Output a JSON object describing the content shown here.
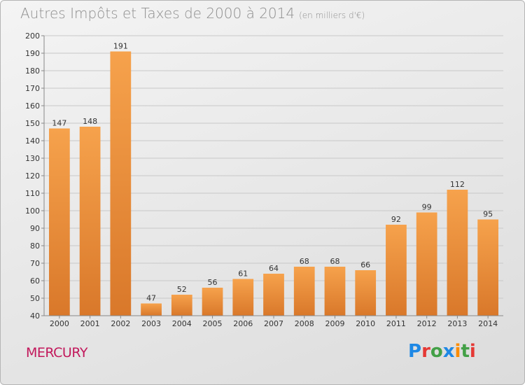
{
  "header": {
    "title": "Autres Impôts et Taxes de 2000 à 2014",
    "subtitle": "(en milliers d'€)"
  },
  "footer": {
    "commune": "MERCURY",
    "logo_text": "Proxiti",
    "logo_colors": [
      "#1e88e5",
      "#e53935",
      "#43a047",
      "#1e88e5",
      "#fb8c00",
      "#43a047",
      "#e53935"
    ]
  },
  "colors": {
    "bar_top": "#f6a24c",
    "bar_bottom": "#d9782a",
    "grid": "#c8c8c8",
    "axis": "#888888",
    "text": "#333333"
  },
  "chart_data": {
    "type": "bar",
    "title": "Autres Impôts et Taxes de 2000 à 2014",
    "subtitle": "(en milliers d'€)",
    "categories": [
      "2000",
      "2001",
      "2002",
      "2003",
      "2004",
      "2005",
      "2006",
      "2007",
      "2008",
      "2009",
      "2010",
      "2011",
      "2012",
      "2013",
      "2014"
    ],
    "values": [
      147,
      148,
      191,
      47,
      52,
      56,
      61,
      64,
      68,
      68,
      66,
      92,
      99,
      112,
      95
    ],
    "ylim": [
      40,
      200
    ],
    "yticks": [
      40,
      50,
      60,
      70,
      80,
      90,
      100,
      110,
      120,
      130,
      140,
      150,
      160,
      170,
      180,
      190,
      200
    ],
    "grid": true,
    "data_labels": true
  }
}
